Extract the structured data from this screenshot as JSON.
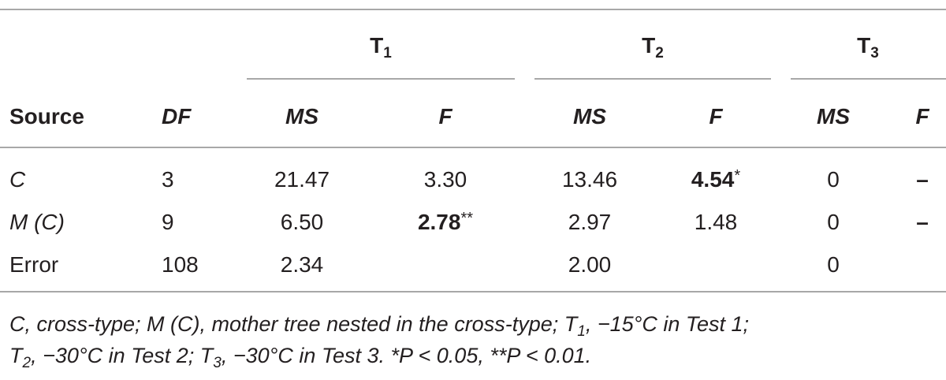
{
  "table": {
    "group_headers": [
      {
        "label": "T",
        "sub": "1"
      },
      {
        "label": "T",
        "sub": "2"
      },
      {
        "label": "T",
        "sub": "3"
      }
    ],
    "columns": [
      "Source",
      "DF",
      "MS",
      "F",
      "MS",
      "F",
      "MS",
      "F"
    ],
    "rows": [
      [
        "C",
        "3",
        "21.47",
        "3.30",
        "13.46",
        {
          "value": "4.54",
          "note": "*"
        },
        "0",
        "–"
      ],
      [
        "M (C)",
        "9",
        "6.50",
        {
          "value": "2.78",
          "note": "**"
        },
        "2.97",
        "1.48",
        "0",
        "–"
      ],
      [
        "Error",
        "108",
        "2.34",
        "",
        "2.00",
        "",
        "0",
        ""
      ]
    ]
  },
  "footnote": [
    [
      {
        "text": "C, cross-type; M (C), mother tree nested in the cross-type; T"
      },
      {
        "sub": "1"
      },
      {
        "text": ", −15°C in Test 1;"
      }
    ],
    [
      {
        "text": "T"
      },
      {
        "sub": "2"
      },
      {
        "text": ", −30°C in Test 2; T"
      },
      {
        "sub": "3"
      },
      {
        "text": ", −30°C in Test 3. *P < 0.05, **P < 0.01."
      }
    ]
  ]
}
